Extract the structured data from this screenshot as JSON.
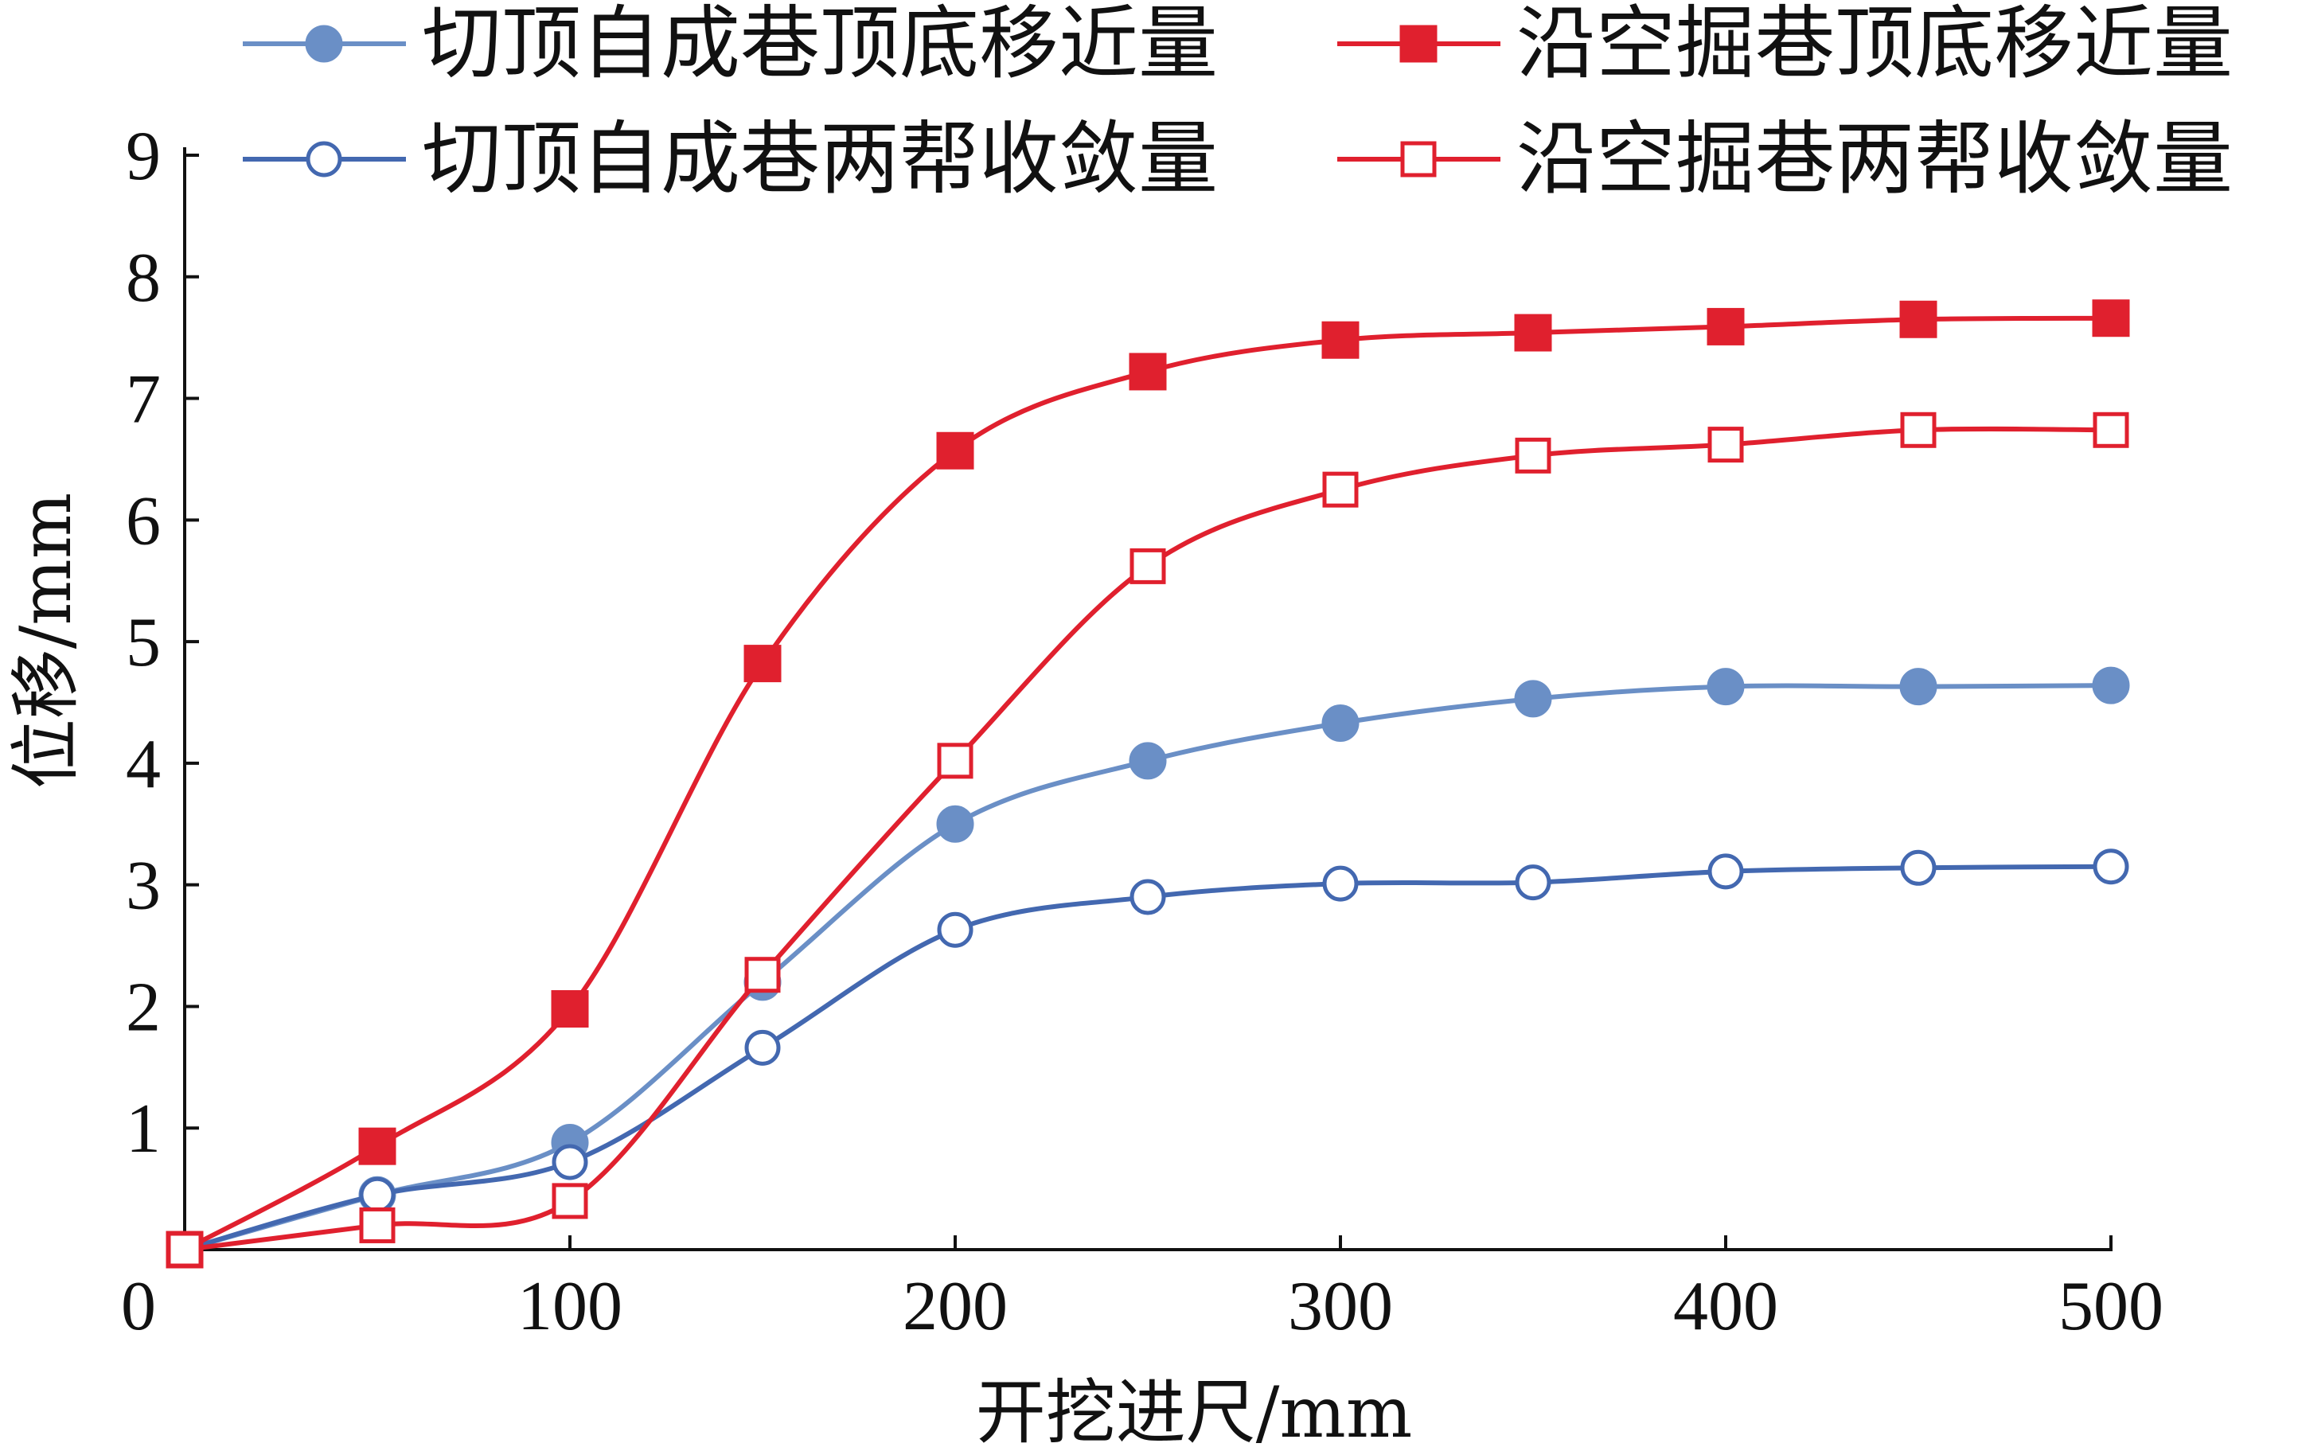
{
  "chart_data": {
    "type": "line",
    "xlabel": "开挖进尺/mm",
    "ylabel": "位移/mm",
    "xlim": [
      0,
      500
    ],
    "ylim": [
      0,
      9
    ],
    "xticks": [
      0,
      100,
      200,
      300,
      400,
      500
    ],
    "yticks": [
      1,
      2,
      3,
      4,
      5,
      6,
      7,
      8,
      9
    ],
    "grid": false,
    "legend_position": "top",
    "x": [
      0,
      50,
      100,
      150,
      200,
      250,
      300,
      350,
      400,
      450,
      500
    ],
    "series": [
      {
        "name": "切顶自成巷顶底移近量",
        "marker": "filled-circle",
        "color": "#6a8fc6",
        "values": [
          0,
          0.45,
          0.88,
          2.2,
          3.5,
          4.02,
          4.33,
          4.53,
          4.63,
          4.63,
          4.64
        ]
      },
      {
        "name": "沿空掘巷顶底移近量",
        "marker": "filled-square",
        "color": "#e0202e",
        "values": [
          0,
          0.85,
          1.98,
          4.82,
          6.57,
          7.22,
          7.48,
          7.54,
          7.59,
          7.65,
          7.66
        ]
      },
      {
        "name": "切顶自成巷两帮收敛量",
        "marker": "open-circle",
        "color": "#4368b0",
        "values": [
          0,
          0.45,
          0.72,
          1.66,
          2.63,
          2.9,
          3.01,
          3.02,
          3.11,
          3.14,
          3.15
        ]
      },
      {
        "name": "沿空掘巷两帮收敛量",
        "marker": "open-square",
        "color": "#e0202e",
        "values": [
          0,
          0.2,
          0.4,
          2.26,
          4.02,
          5.62,
          6.25,
          6.53,
          6.62,
          6.74,
          6.74
        ]
      }
    ]
  }
}
